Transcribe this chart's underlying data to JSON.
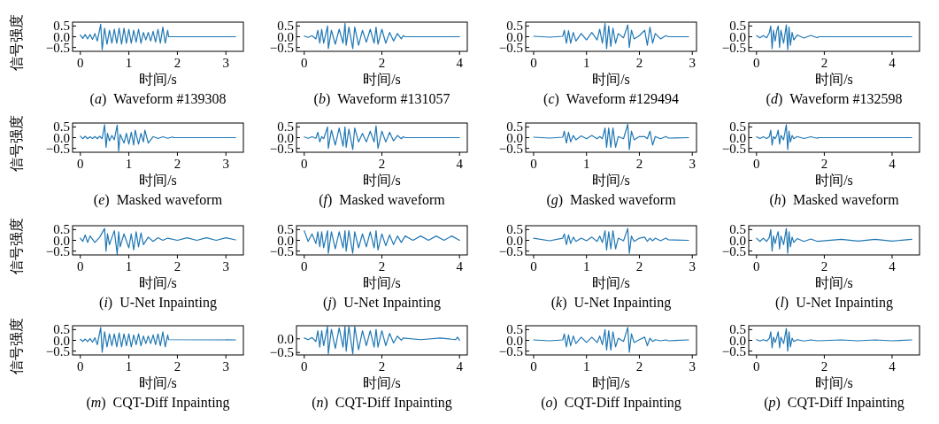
{
  "chart_data": [
    {
      "type": "line",
      "title": "(a)  Waveform #139308",
      "xlabel": "时间/s",
      "ylabel": "信号强度",
      "xlim": [
        -0.16,
        3.36
      ],
      "xticks": [
        0,
        1,
        2,
        3
      ],
      "ylim": [
        -0.68,
        0.68
      ],
      "yticks": [
        {
          "value": 0.5,
          "label": "0.5"
        },
        {
          "value": 0,
          "label": "0.0"
        },
        {
          "value": -0.5,
          "label": "−0.5"
        }
      ],
      "series": [
        {
          "color": "#1f77b4",
          "x": [
            0,
            0.05,
            0.1,
            0.15,
            0.2,
            0.25,
            0.3,
            0.35,
            0.42,
            0.45,
            0.5,
            0.55,
            0.6,
            0.65,
            0.7,
            0.75,
            0.8,
            0.85,
            0.9,
            0.95,
            1.0,
            1.05,
            1.1,
            1.15,
            1.2,
            1.25,
            1.3,
            1.35,
            1.4,
            1.45,
            1.5,
            1.55,
            1.6,
            1.65,
            1.7,
            1.75,
            1.8,
            1.82,
            3.2
          ],
          "values": [
            0.08,
            -0.08,
            0.1,
            -0.1,
            0.1,
            -0.12,
            0.15,
            -0.2,
            0.58,
            -0.6,
            0.4,
            -0.35,
            0.3,
            -0.3,
            0.35,
            -0.3,
            0.4,
            -0.35,
            0.4,
            -0.3,
            0.35,
            -0.3,
            0.3,
            -0.25,
            0.35,
            -0.3,
            0.2,
            -0.15,
            0.2,
            -0.2,
            0.25,
            -0.25,
            0.35,
            -0.3,
            0.45,
            -0.3,
            0.3,
            0,
            0
          ]
        }
      ]
    },
    {
      "type": "line",
      "title": "(b)  Waveform #131057",
      "xlabel": "时间/s",
      "xlim": [
        -0.2,
        4.2
      ],
      "xticks": [
        0,
        2,
        4
      ],
      "ylim": [
        -0.68,
        0.68
      ],
      "yticks": [
        {
          "value": 0.5,
          "label": "0.5"
        },
        {
          "value": 0,
          "label": "0.0"
        },
        {
          "value": -0.5,
          "label": "−0.5"
        }
      ],
      "series": [
        {
          "color": "#1f77b4",
          "x": [
            0,
            0.1,
            0.2,
            0.3,
            0.35,
            0.4,
            0.45,
            0.5,
            0.6,
            0.62,
            0.7,
            0.8,
            0.9,
            1.0,
            1.05,
            1.08,
            1.15,
            1.25,
            1.3,
            1.4,
            1.5,
            1.6,
            1.7,
            1.8,
            1.85,
            1.9,
            2.0,
            2.1,
            2.2,
            2.3,
            2.4,
            2.5,
            2.55,
            2.6,
            4.0
          ],
          "values": [
            0.03,
            -0.03,
            0.05,
            -0.1,
            0.3,
            -0.3,
            0.35,
            -0.3,
            0.5,
            -0.55,
            0.3,
            -0.35,
            0.35,
            -0.3,
            0.62,
            -0.4,
            0.45,
            -0.55,
            0.45,
            -0.4,
            0.3,
            -0.25,
            0.35,
            -0.3,
            0.45,
            -0.35,
            0.35,
            -0.3,
            0.2,
            -0.2,
            0.15,
            -0.1,
            0.05,
            0,
            0
          ]
        }
      ]
    },
    {
      "type": "line",
      "title": "(c)  Waveform #129494",
      "xlabel": "时间/s",
      "xlim": [
        -0.15,
        3.08
      ],
      "xticks": [
        0,
        1,
        2,
        3
      ],
      "ylim": [
        -0.68,
        0.68
      ],
      "yticks": [
        {
          "value": 0.5,
          "label": "0.5"
        },
        {
          "value": 0,
          "label": "0.0"
        },
        {
          "value": -0.5,
          "label": "−0.5"
        }
      ],
      "series": [
        {
          "color": "#1f77b4",
          "x": [
            0,
            0.3,
            0.55,
            0.58,
            0.62,
            0.66,
            0.7,
            0.75,
            0.8,
            0.9,
            1.0,
            1.1,
            1.2,
            1.25,
            1.3,
            1.35,
            1.38,
            1.42,
            1.46,
            1.5,
            1.55,
            1.6,
            1.7,
            1.78,
            1.81,
            1.85,
            1.9,
            2.0,
            2.1,
            2.15,
            2.2,
            2.25,
            2.3,
            2.4,
            2.5,
            2.55,
            2.93
          ],
          "values": [
            0.02,
            -0.02,
            0.02,
            0.3,
            -0.3,
            0.28,
            -0.3,
            0.2,
            -0.2,
            0.15,
            -0.15,
            0.2,
            -0.15,
            0.35,
            -0.3,
            0.62,
            -0.55,
            0.5,
            -0.45,
            0.4,
            -0.3,
            0.15,
            -0.05,
            0.55,
            -0.5,
            0.3,
            -0.1,
            0.05,
            0.3,
            -0.4,
            0.45,
            -0.3,
            0.15,
            -0.1,
            0.05,
            0,
            0
          ]
        }
      ]
    },
    {
      "type": "line",
      "title": "(d)  Waveform #132598",
      "xlabel": "时间/s",
      "xlim": [
        -0.23,
        4.81
      ],
      "xticks": [
        0,
        2,
        4
      ],
      "ylim": [
        -0.68,
        0.68
      ],
      "yticks": [
        {
          "value": 0.5,
          "label": "0.5"
        },
        {
          "value": 0,
          "label": "0.0"
        },
        {
          "value": -0.5,
          "label": "−0.5"
        }
      ],
      "series": [
        {
          "color": "#1f77b4",
          "x": [
            0,
            0.1,
            0.2,
            0.3,
            0.38,
            0.42,
            0.46,
            0.5,
            0.55,
            0.6,
            0.64,
            0.68,
            0.72,
            0.8,
            0.88,
            0.92,
            0.96,
            1.0,
            1.05,
            1.1,
            1.2,
            1.4,
            1.6,
            1.8,
            1.82,
            4.58
          ],
          "values": [
            0.05,
            -0.05,
            0.05,
            -0.05,
            0.2,
            0.5,
            -0.55,
            0.3,
            -0.2,
            0.3,
            0.5,
            -0.5,
            0.3,
            -0.3,
            0.55,
            -0.6,
            0.45,
            -0.4,
            0.2,
            -0.15,
            0.08,
            -0.06,
            0.06,
            -0.05,
            0,
            0
          ]
        }
      ]
    },
    {
      "type": "line",
      "title": "(e)  Masked waveform",
      "xlabel": "时间/s",
      "ylabel": "信号强度",
      "xlim": [
        -0.16,
        3.36
      ],
      "xticks": [
        0,
        1,
        2,
        3
      ],
      "ylim": [
        -0.68,
        0.68
      ],
      "yticks": [
        {
          "value": 0.5,
          "label": "0.5"
        },
        {
          "value": 0,
          "label": "0.0"
        },
        {
          "value": -0.5,
          "label": "−0.5"
        }
      ],
      "series": [
        {
          "color": "#1f77b4",
          "x": [
            0,
            0.05,
            0.1,
            0.15,
            0.2,
            0.25,
            0.3,
            0.35,
            0.4,
            0.45,
            0.5,
            0.53,
            0.56,
            0.6,
            0.65,
            0.7,
            0.76,
            0.79,
            0.82,
            0.9,
            0.95,
            1.0,
            1.05,
            1.1,
            1.13,
            1.2,
            1.25,
            1.3,
            1.33,
            1.4,
            1.5,
            1.6,
            1.7,
            1.8,
            1.9,
            1.92,
            3.2
          ],
          "values": [
            0.07,
            -0.05,
            0.06,
            -0.05,
            0.04,
            -0.04,
            0.05,
            -0.05,
            0.06,
            -0.05,
            0.6,
            -0.45,
            0.2,
            -0.15,
            0.1,
            -0.1,
            0.58,
            -0.62,
            0.15,
            -0.25,
            0.2,
            -0.3,
            0.25,
            -0.35,
            0.35,
            -0.3,
            0.2,
            -0.2,
            0.35,
            -0.25,
            0.05,
            -0.04,
            0.04,
            -0.03,
            0.03,
            0,
            0
          ]
        }
      ]
    },
    {
      "type": "line",
      "title": "(f)  Masked waveform",
      "xlabel": "时间/s",
      "xlim": [
        -0.2,
        4.2
      ],
      "xticks": [
        0,
        2,
        4
      ],
      "ylim": [
        -0.68,
        0.68
      ],
      "yticks": [
        {
          "value": 0.5,
          "label": "0.5"
        },
        {
          "value": 0,
          "label": "0.0"
        },
        {
          "value": -0.5,
          "label": "−0.5"
        }
      ],
      "series": [
        {
          "color": "#1f77b4",
          "x": [
            0,
            0.1,
            0.2,
            0.3,
            0.35,
            0.4,
            0.45,
            0.5,
            0.6,
            0.62,
            0.7,
            0.8,
            0.9,
            1.0,
            1.05,
            1.08,
            1.15,
            1.25,
            1.3,
            1.4,
            1.5,
            1.6,
            1.7,
            1.8,
            1.85,
            1.9,
            2.0,
            2.1,
            2.2,
            2.3,
            2.4,
            2.5,
            2.55,
            2.6,
            4.0
          ],
          "values": [
            0.03,
            -0.03,
            0.04,
            -0.03,
            0.25,
            -0.2,
            0.05,
            -0.05,
            0.5,
            -0.5,
            0.35,
            -0.35,
            0.45,
            -0.4,
            0.5,
            -0.45,
            0.4,
            -0.55,
            0.45,
            -0.2,
            0.2,
            -0.2,
            0.3,
            -0.2,
            0.55,
            -0.5,
            0.3,
            -0.2,
            0.25,
            -0.15,
            0.1,
            -0.05,
            0.04,
            0,
            0
          ]
        }
      ]
    },
    {
      "type": "line",
      "title": "(g)  Masked waveform",
      "xlabel": "时间/s",
      "xlim": [
        -0.15,
        3.08
      ],
      "xticks": [
        0,
        1,
        2,
        3
      ],
      "ylim": [
        -0.68,
        0.68
      ],
      "yticks": [
        {
          "value": 0.5,
          "label": "0.5"
        },
        {
          "value": 0,
          "label": "0.0"
        },
        {
          "value": -0.5,
          "label": "−0.5"
        }
      ],
      "series": [
        {
          "color": "#1f77b4",
          "x": [
            0,
            0.3,
            0.55,
            0.58,
            0.62,
            0.66,
            0.7,
            0.75,
            0.8,
            0.9,
            1.0,
            1.1,
            1.2,
            1.25,
            1.3,
            1.35,
            1.38,
            1.42,
            1.46,
            1.5,
            1.55,
            1.6,
            1.7,
            1.78,
            1.81,
            1.85,
            1.9,
            2.0,
            2.1,
            2.15,
            2.2,
            2.25,
            2.3,
            2.4,
            2.5,
            2.55,
            2.93
          ],
          "values": [
            0.02,
            -0.02,
            0.02,
            0.3,
            -0.25,
            0.25,
            -0.2,
            0.1,
            -0.1,
            0.08,
            -0.05,
            0.1,
            -0.05,
            0.05,
            -0.05,
            0.45,
            -0.45,
            0.45,
            -0.45,
            0.45,
            -0.45,
            0.05,
            -0.05,
            0.62,
            -0.55,
            0.3,
            -0.1,
            0.05,
            0.05,
            -0.05,
            0.3,
            -0.35,
            0.05,
            -0.05,
            0.05,
            -0.02,
            0
          ]
        }
      ]
    },
    {
      "type": "line",
      "title": "(h)  Masked waveform",
      "xlabel": "时间/s",
      "xlim": [
        -0.23,
        4.81
      ],
      "xticks": [
        0,
        2,
        4
      ],
      "ylim": [
        -0.68,
        0.68
      ],
      "yticks": [
        {
          "value": 0.5,
          "label": "0.5"
        },
        {
          "value": 0,
          "label": "0.0"
        },
        {
          "value": -0.5,
          "label": "−0.5"
        }
      ],
      "series": [
        {
          "color": "#1f77b4",
          "x": [
            0,
            0.1,
            0.2,
            0.3,
            0.38,
            0.42,
            0.46,
            0.5,
            0.55,
            0.6,
            0.64,
            0.68,
            0.72,
            0.8,
            0.88,
            0.92,
            0.96,
            1.0,
            1.05,
            1.1,
            1.2,
            1.4,
            1.6,
            1.8,
            1.82,
            4.58
          ],
          "values": [
            0.04,
            -0.04,
            0.04,
            -0.04,
            0.05,
            0.35,
            -0.35,
            0.05,
            -0.05,
            0.1,
            0.35,
            -0.3,
            0.1,
            -0.1,
            0.6,
            -0.55,
            0.3,
            -0.2,
            0.1,
            -0.05,
            0.05,
            -0.04,
            0.04,
            -0.03,
            0,
            0
          ]
        }
      ]
    },
    {
      "type": "line",
      "title": "(i)  U-Net Inpainting",
      "xlabel": "时间/s",
      "ylabel": "信号强度",
      "xlim": [
        -0.16,
        3.36
      ],
      "xticks": [
        0,
        1,
        2,
        3
      ],
      "ylim": [
        -0.68,
        0.68
      ],
      "yticks": [
        {
          "value": 0.5,
          "label": "0.5"
        },
        {
          "value": 0,
          "label": "0.0"
        },
        {
          "value": -0.5,
          "label": "−0.5"
        }
      ],
      "series": [
        {
          "color": "#1f77b4",
          "x": [
            0,
            0.05,
            0.1,
            0.15,
            0.2,
            0.3,
            0.4,
            0.5,
            0.53,
            0.56,
            0.6,
            0.7,
            0.76,
            0.79,
            0.82,
            0.9,
            1.0,
            1.05,
            1.1,
            1.15,
            1.2,
            1.25,
            1.3,
            1.4,
            1.5,
            1.6,
            1.7,
            1.8,
            2.0,
            2.2,
            2.4,
            2.6,
            2.8,
            3.0,
            3.2
          ],
          "values": [
            0.1,
            -0.05,
            0.25,
            -0.1,
            0.2,
            -0.1,
            0.15,
            0.55,
            -0.5,
            0.3,
            -0.2,
            0.45,
            -0.65,
            0.4,
            -0.3,
            0.3,
            -0.35,
            0.3,
            -0.45,
            0.4,
            -0.3,
            0.35,
            -0.2,
            0.15,
            -0.05,
            0.12,
            0,
            0.1,
            0,
            0.12,
            0,
            0.12,
            0,
            0.12,
            0.02
          ]
        }
      ]
    },
    {
      "type": "line",
      "title": "(j)  U-Net Inpainting",
      "xlabel": "时间/s",
      "xlim": [
        -0.2,
        4.2
      ],
      "xticks": [
        0,
        2,
        4
      ],
      "ylim": [
        -0.68,
        0.68
      ],
      "yticks": [
        {
          "value": 0.5,
          "label": "0.5"
        },
        {
          "value": 0,
          "label": "0.0"
        },
        {
          "value": -0.5,
          "label": "−0.5"
        }
      ],
      "series": [
        {
          "color": "#1f77b4",
          "x": [
            0,
            0.1,
            0.2,
            0.3,
            0.35,
            0.4,
            0.45,
            0.5,
            0.6,
            0.62,
            0.7,
            0.8,
            0.9,
            1.0,
            1.05,
            1.08,
            1.15,
            1.25,
            1.3,
            1.4,
            1.5,
            1.6,
            1.7,
            1.8,
            1.85,
            1.9,
            2.0,
            2.1,
            2.2,
            2.3,
            2.4,
            2.5,
            2.6,
            2.8,
            3.0,
            3.2,
            3.4,
            3.6,
            3.8,
            4.0
          ],
          "values": [
            0.45,
            -0.05,
            0.3,
            -0.15,
            0.4,
            -0.3,
            0.4,
            -0.35,
            0.45,
            -0.6,
            0.4,
            -0.4,
            0.4,
            -0.35,
            0.45,
            -0.5,
            0.45,
            -0.6,
            0.4,
            -0.35,
            0.3,
            -0.3,
            0.4,
            -0.35,
            0.45,
            -0.45,
            0.3,
            -0.25,
            0.25,
            -0.2,
            0.2,
            -0.1,
            0.2,
            0,
            0.2,
            0,
            0.2,
            0,
            0.2,
            0
          ]
        }
      ]
    },
    {
      "type": "line",
      "title": "(k)  U-Net Inpainting",
      "xlabel": "时间/s",
      "xlim": [
        -0.15,
        3.08
      ],
      "xticks": [
        0,
        1,
        2,
        3
      ],
      "ylim": [
        -0.68,
        0.68
      ],
      "yticks": [
        {
          "value": 0.5,
          "label": "0.5"
        },
        {
          "value": 0,
          "label": "0.0"
        },
        {
          "value": -0.5,
          "label": "−0.5"
        }
      ],
      "series": [
        {
          "color": "#1f77b4",
          "x": [
            0,
            0.3,
            0.55,
            0.58,
            0.62,
            0.66,
            0.7,
            0.75,
            0.8,
            0.9,
            1.0,
            1.1,
            1.2,
            1.25,
            1.3,
            1.35,
            1.38,
            1.42,
            1.46,
            1.5,
            1.55,
            1.6,
            1.7,
            1.78,
            1.81,
            1.85,
            1.9,
            2.0,
            2.1,
            2.15,
            2.2,
            2.25,
            2.3,
            2.4,
            2.5,
            2.55,
            2.93
          ],
          "values": [
            0.1,
            -0.02,
            0.1,
            0.3,
            -0.2,
            0.25,
            -0.15,
            0.15,
            -0.05,
            0.1,
            -0.02,
            0.15,
            -0.05,
            0.2,
            -0.1,
            0.45,
            -0.45,
            0.4,
            -0.4,
            0.45,
            -0.4,
            0.1,
            -0.02,
            0.55,
            -0.6,
            0.2,
            -0.05,
            0.1,
            0.15,
            -0.05,
            0.1,
            -0.02,
            0.1,
            -0.02,
            0.1,
            0.02,
            0
          ]
        }
      ]
    },
    {
      "type": "line",
      "title": "(l)  U-Net Inpainting",
      "xlabel": "时间/s",
      "xlim": [
        -0.23,
        4.81
      ],
      "xticks": [
        0,
        2,
        4
      ],
      "ylim": [
        -0.68,
        0.68
      ],
      "yticks": [
        {
          "value": 0.5,
          "label": "0.5"
        },
        {
          "value": 0,
          "label": "0.0"
        },
        {
          "value": -0.5,
          "label": "−0.5"
        }
      ],
      "series": [
        {
          "color": "#1f77b4",
          "x": [
            0,
            0.1,
            0.2,
            0.3,
            0.38,
            0.42,
            0.46,
            0.5,
            0.55,
            0.6,
            0.64,
            0.68,
            0.72,
            0.8,
            0.88,
            0.92,
            0.96,
            1.0,
            1.05,
            1.1,
            1.2,
            1.4,
            1.6,
            1.8,
            2.5,
            3.0,
            3.5,
            4.0,
            4.58
          ],
          "values": [
            0.1,
            -0.05,
            0.1,
            -0.05,
            0.15,
            0.5,
            -0.5,
            0.2,
            -0.15,
            0.2,
            0.4,
            -0.4,
            0.2,
            -0.2,
            0.55,
            -0.6,
            0.4,
            -0.3,
            0.15,
            -0.1,
            0.08,
            -0.05,
            0.06,
            -0.05,
            0.05,
            -0.04,
            0.05,
            -0.04,
            0.05
          ]
        }
      ]
    },
    {
      "type": "line",
      "title": "(m)  CQT-Diff Inpainting",
      "xlabel": "时间/s",
      "ylabel": "信号强度",
      "xlim": [
        -0.16,
        3.36
      ],
      "xticks": [
        0,
        1,
        2,
        3
      ],
      "ylim": [
        -0.68,
        0.68
      ],
      "yticks": [
        {
          "value": 0.5,
          "label": "0.5"
        },
        {
          "value": 0,
          "label": "0.0"
        },
        {
          "value": -0.5,
          "label": "−0.5"
        }
      ],
      "series": [
        {
          "color": "#1f77b4",
          "x": [
            0,
            0.05,
            0.1,
            0.15,
            0.2,
            0.25,
            0.3,
            0.35,
            0.42,
            0.45,
            0.5,
            0.55,
            0.6,
            0.65,
            0.7,
            0.75,
            0.8,
            0.85,
            0.9,
            0.95,
            1.0,
            1.05,
            1.1,
            1.15,
            1.2,
            1.25,
            1.3,
            1.35,
            1.4,
            1.45,
            1.5,
            1.55,
            1.6,
            1.65,
            1.7,
            1.75,
            1.8,
            1.82,
            3.2
          ],
          "values": [
            0.05,
            -0.05,
            0.06,
            -0.06,
            0.08,
            -0.08,
            0.12,
            -0.2,
            0.6,
            -0.55,
            0.4,
            -0.3,
            0.3,
            -0.25,
            0.3,
            -0.3,
            0.35,
            -0.3,
            0.3,
            -0.25,
            0.3,
            -0.3,
            0.25,
            -0.2,
            0.3,
            -0.25,
            0.2,
            -0.15,
            0.2,
            -0.15,
            0.25,
            -0.2,
            0.3,
            -0.25,
            0.4,
            -0.3,
            0.25,
            0.03,
            0.02
          ]
        }
      ]
    },
    {
      "type": "line",
      "title": "(n)  CQT-Diff Inpainting",
      "xlabel": "时间/s",
      "xlim": [
        -0.2,
        4.2
      ],
      "xticks": [
        0,
        2,
        4
      ],
      "ylim": [
        -0.59,
        0.48
      ],
      "yticks": [
        {
          "value": 0,
          "label": "0.0"
        },
        {
          "value": -0.5,
          "label": "−0.5"
        }
      ],
      "series": [
        {
          "color": "#1f77b4",
          "x": [
            0,
            0.1,
            0.2,
            0.3,
            0.35,
            0.4,
            0.45,
            0.5,
            0.6,
            0.62,
            0.7,
            0.8,
            0.9,
            1.0,
            1.05,
            1.08,
            1.15,
            1.25,
            1.3,
            1.4,
            1.5,
            1.6,
            1.7,
            1.8,
            1.85,
            1.9,
            2.0,
            2.1,
            2.2,
            2.3,
            2.4,
            2.5,
            2.55,
            3.0,
            3.5,
            3.9,
            3.95,
            4.0
          ],
          "values": [
            0.03,
            -0.03,
            0.05,
            -0.1,
            0.3,
            -0.3,
            0.3,
            -0.25,
            0.45,
            -0.55,
            0.35,
            -0.35,
            0.4,
            -0.3,
            0.45,
            -0.45,
            0.45,
            -0.55,
            0.45,
            -0.4,
            0.3,
            -0.25,
            0.3,
            -0.3,
            0.35,
            -0.3,
            0.3,
            -0.25,
            0.2,
            -0.15,
            0.1,
            -0.05,
            0.03,
            -0.03,
            0.03,
            -0.03,
            0.06,
            -0.05
          ]
        }
      ]
    },
    {
      "type": "line",
      "title": "(o)  CQT-Diff Inpainting",
      "xlabel": "时间/s",
      "xlim": [
        -0.15,
        3.08
      ],
      "xticks": [
        0,
        1,
        2,
        3
      ],
      "ylim": [
        -0.68,
        0.68
      ],
      "yticks": [
        {
          "value": 0.5,
          "label": "0.5"
        },
        {
          "value": 0,
          "label": "0.0"
        },
        {
          "value": -0.5,
          "label": "−0.5"
        }
      ],
      "series": [
        {
          "color": "#1f77b4",
          "x": [
            0,
            0.3,
            0.55,
            0.58,
            0.62,
            0.66,
            0.7,
            0.75,
            0.8,
            0.9,
            1.0,
            1.1,
            1.2,
            1.25,
            1.3,
            1.35,
            1.38,
            1.42,
            1.46,
            1.5,
            1.55,
            1.6,
            1.7,
            1.78,
            1.81,
            1.85,
            1.9,
            2.0,
            2.1,
            2.15,
            2.2,
            2.25,
            2.3,
            2.4,
            2.5,
            2.55,
            2.93
          ],
          "values": [
            0.02,
            -0.02,
            0.02,
            0.3,
            -0.3,
            0.25,
            -0.25,
            0.2,
            -0.15,
            0.15,
            -0.1,
            0.15,
            -0.1,
            0.2,
            -0.2,
            0.5,
            -0.45,
            0.45,
            -0.45,
            0.4,
            -0.3,
            0.1,
            -0.05,
            0.6,
            -0.55,
            0.3,
            -0.1,
            0.03,
            0.15,
            -0.25,
            0.1,
            -0.05,
            0.03,
            -0.02,
            0.02,
            -0.02,
            0.02
          ]
        }
      ]
    },
    {
      "type": "line",
      "title": "(p)  CQT-Diff Inpainting",
      "xlabel": "时间/s",
      "xlim": [
        -0.23,
        4.81
      ],
      "xticks": [
        0,
        2,
        4
      ],
      "ylim": [
        -0.68,
        0.68
      ],
      "yticks": [
        {
          "value": 0.5,
          "label": "0.5"
        },
        {
          "value": 0,
          "label": "0.0"
        },
        {
          "value": -0.5,
          "label": "−0.5"
        }
      ],
      "series": [
        {
          "color": "#1f77b4",
          "x": [
            0,
            0.1,
            0.2,
            0.3,
            0.38,
            0.42,
            0.46,
            0.5,
            0.55,
            0.6,
            0.64,
            0.68,
            0.72,
            0.8,
            0.88,
            0.92,
            0.96,
            1.0,
            1.05,
            1.1,
            1.2,
            1.4,
            1.6,
            1.8,
            2.5,
            3.0,
            3.5,
            4.0,
            4.58
          ],
          "values": [
            0.03,
            -0.03,
            0.03,
            -0.03,
            0.1,
            0.4,
            -0.35,
            0.15,
            -0.1,
            0.15,
            0.4,
            -0.35,
            0.15,
            -0.15,
            0.55,
            -0.5,
            0.4,
            -0.3,
            0.1,
            -0.05,
            0.03,
            -0.03,
            0.02,
            -0.02,
            0.02,
            -0.02,
            0.02,
            -0.02,
            0.02
          ]
        }
      ]
    }
  ]
}
